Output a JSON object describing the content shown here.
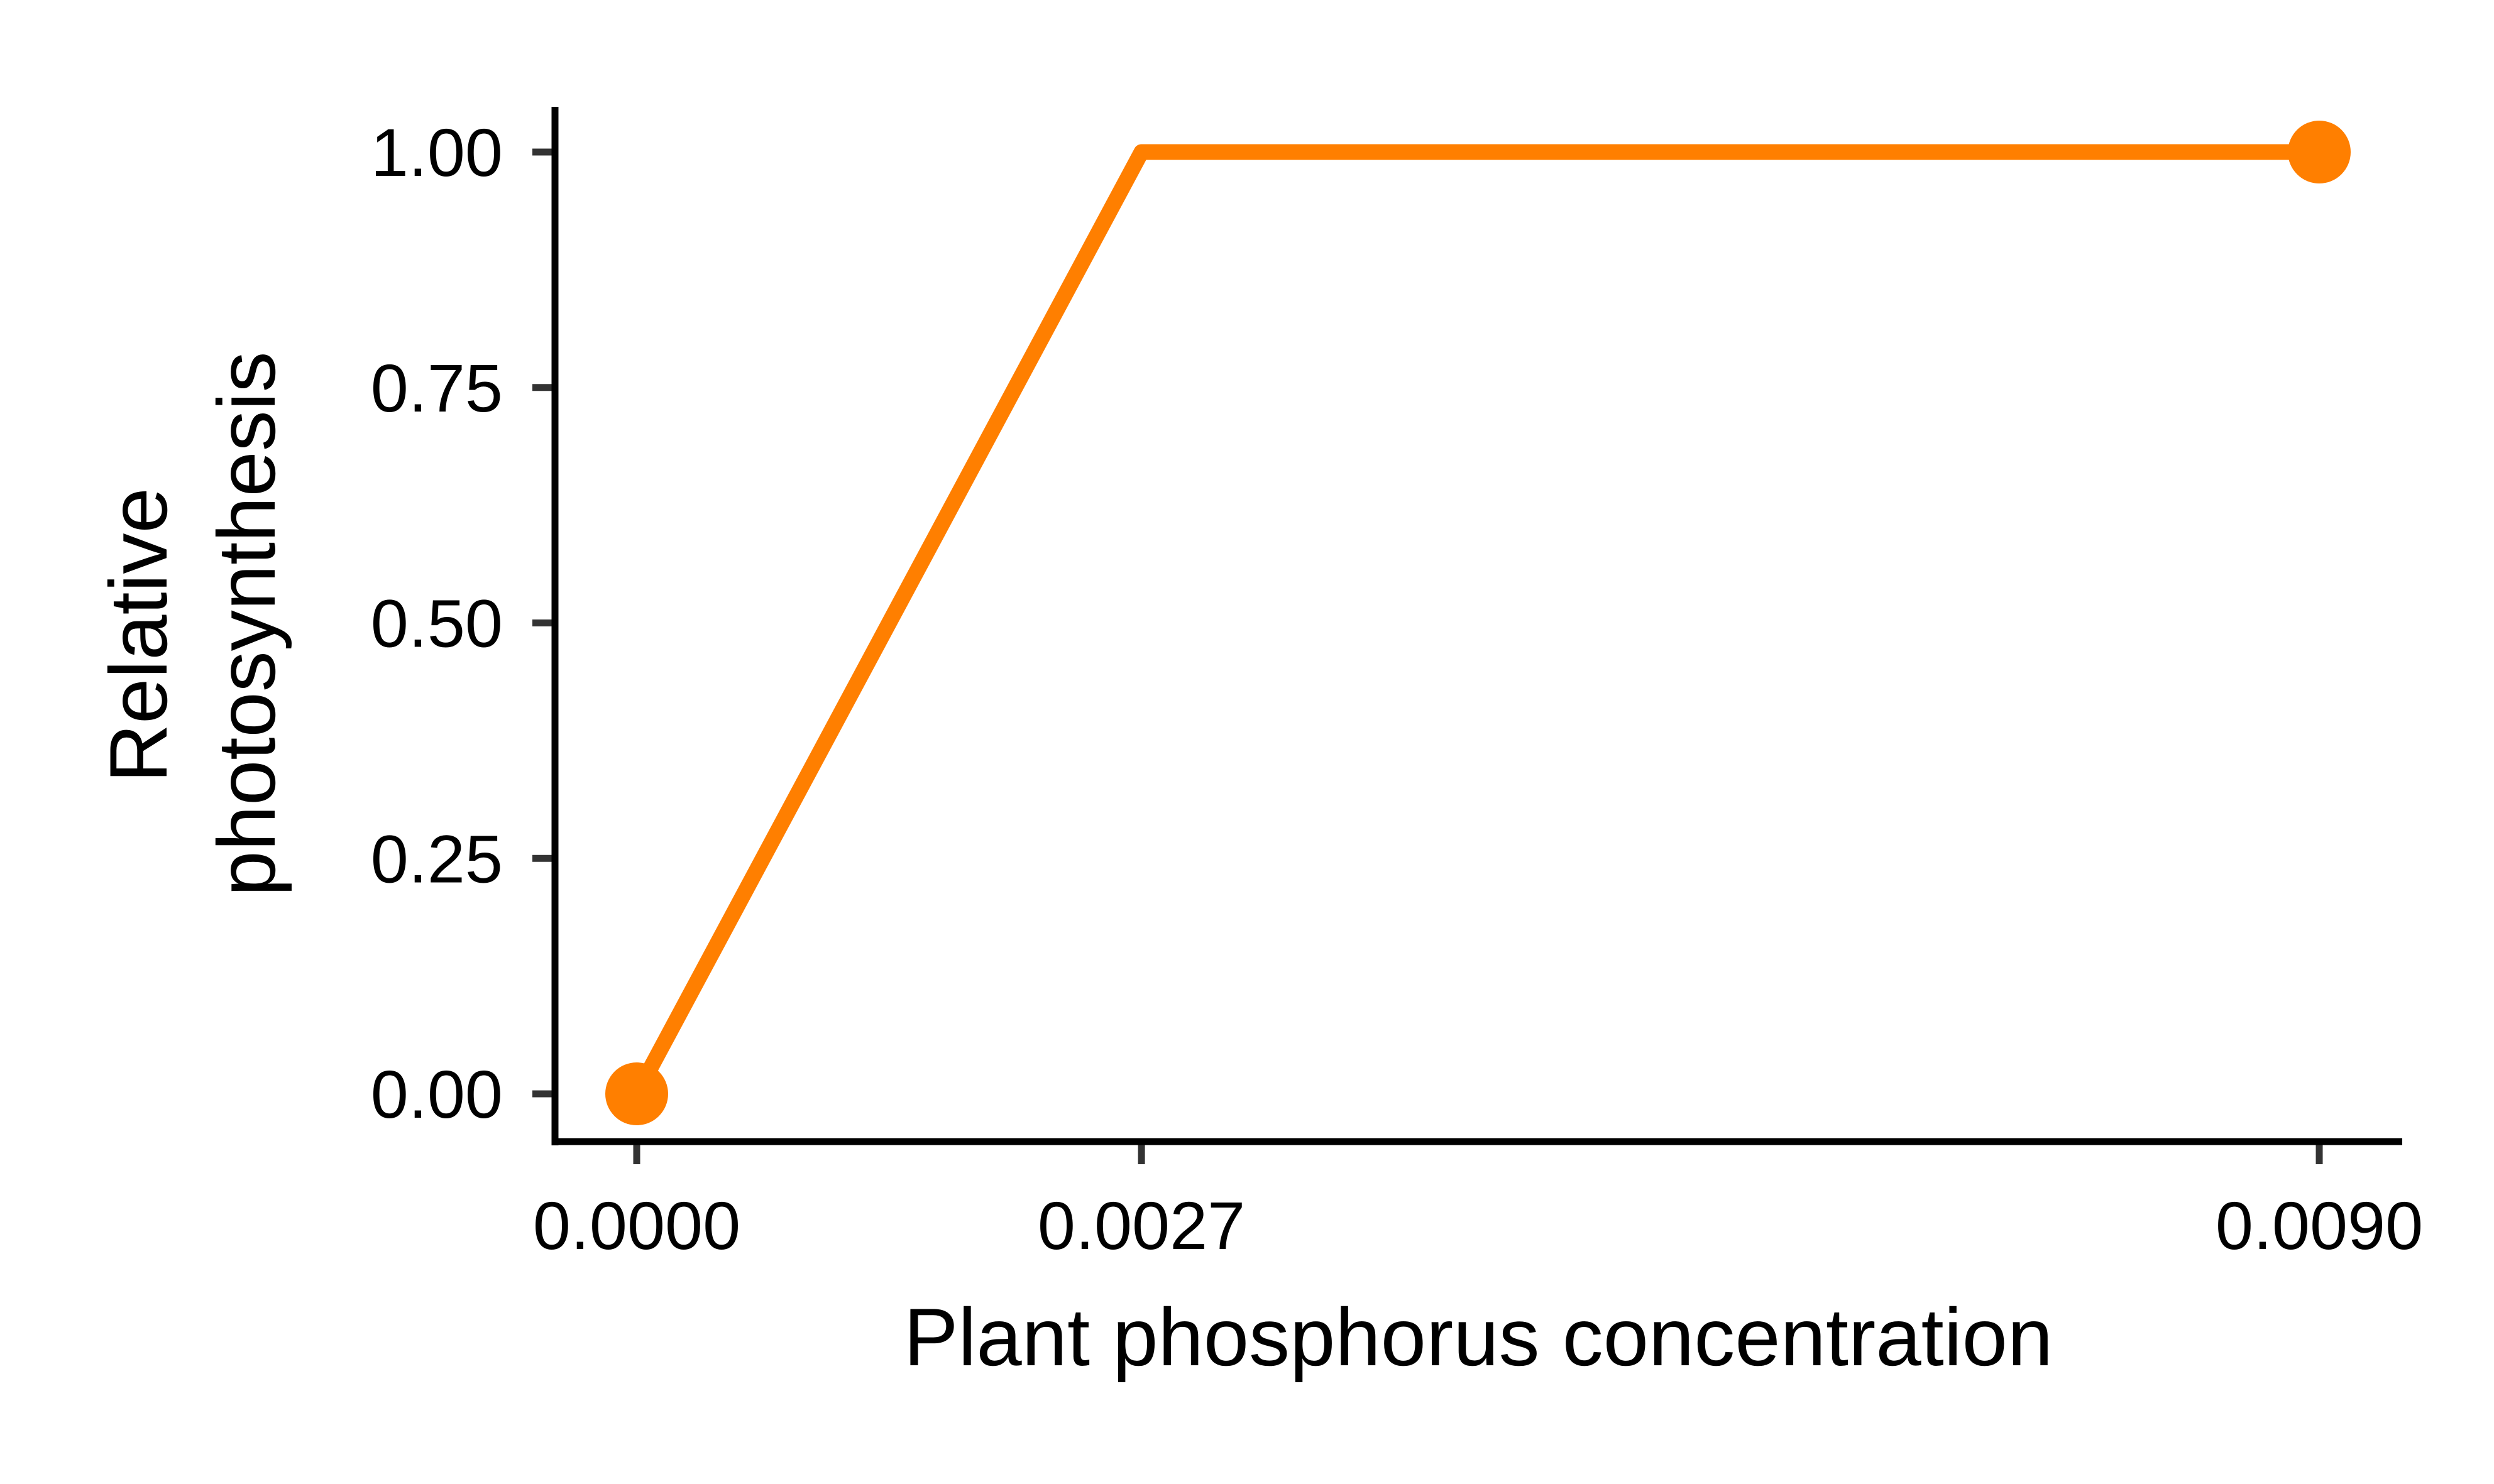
{
  "chart_data": {
    "type": "line",
    "xlabel": "Plant phosphorus concentration",
    "ylabel_lines": [
      "Relative",
      "photosynthesis"
    ],
    "x": [
      0.0,
      0.0027,
      0.009
    ],
    "y": [
      0.0,
      1.0,
      1.0
    ],
    "markers": [
      {
        "x": 0.0,
        "y": 0.0
      },
      {
        "x": 0.009,
        "y": 1.0
      }
    ],
    "xticks": [
      0.0,
      0.0027,
      0.009
    ],
    "xtick_labels": [
      "0.0000",
      "0.0027",
      "0.0090"
    ],
    "yticks": [
      0.0,
      0.25,
      0.5,
      0.75,
      1.0
    ],
    "ytick_labels": [
      "0.00",
      "0.25",
      "0.50",
      "0.75",
      "1.00"
    ],
    "xlim": [
      -0.00045,
      0.00945
    ],
    "ylim": [
      -0.05,
      1.05
    ],
    "grid": false,
    "colors": {
      "series": "#FF7F00",
      "axis": "#000000",
      "tick": "#333333"
    }
  }
}
